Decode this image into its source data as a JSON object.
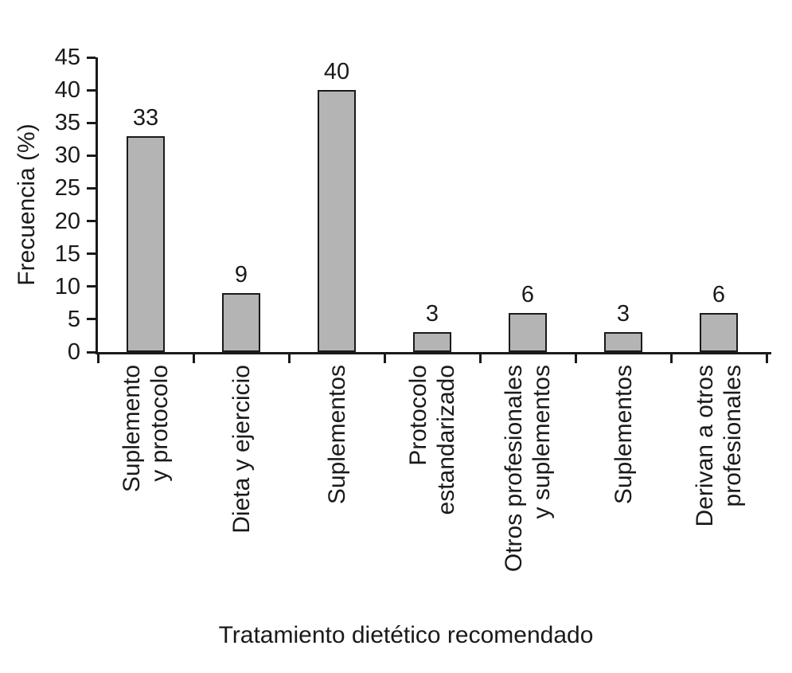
{
  "chart_data": {
    "type": "bar",
    "title": "",
    "ylabel": "Frecuencia (%)",
    "xlabel": "Tratamiento dietético recomendado",
    "ylim": [
      0,
      45
    ],
    "ytick_step": 5,
    "grid": false,
    "legend": false,
    "bar_color": "#b4b4b4",
    "bar_border_color": "#1a1a1a",
    "axis_color": "#1a1a1a",
    "categories": [
      "Suplemento y protocolo",
      "Dieta y ejercicio",
      "Suplementos",
      "Protocolo estandarizado",
      "Otros profesionales y suplementos",
      "Suplementos",
      "Derivan a otros profesionales"
    ],
    "category_label_lines": [
      [
        "Suplemento",
        "y protocolo"
      ],
      [
        "Dieta y ejercicio"
      ],
      [
        "Suplementos"
      ],
      [
        "Protocolo",
        "estandarizado"
      ],
      [
        "Otros profesionales",
        "y suplementos"
      ],
      [
        "Suplementos"
      ],
      [
        "Derivan a otros",
        "profesionales"
      ]
    ],
    "values": [
      33,
      9,
      40,
      3,
      6,
      3,
      6
    ],
    "ytick_labels": [
      "0",
      "5",
      "10",
      "15",
      "20",
      "25",
      "30",
      "35",
      "40",
      "45"
    ]
  }
}
